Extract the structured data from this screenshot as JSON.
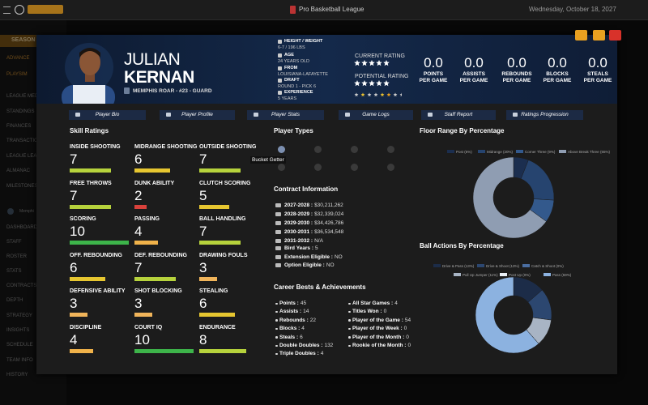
{
  "top_bar": {
    "title": "Pro Basketball League",
    "date": "Wednesday, October 18, 2027"
  },
  "sidebar": {
    "header": "SEASON",
    "team_link": "Memphi",
    "items": [
      "ADVANCE",
      "PLAYSIM",
      "LEAGUE MED",
      "STANDINGS",
      "FINANCES",
      "TRANSACTIO",
      "LEAGUE LEA",
      "ALMANAC",
      "MILESTONES",
      "DASHBOARD",
      "STAFF",
      "ROSTER",
      "STATS",
      "CONTRACTS",
      "DEPTH",
      "STRATEGY",
      "INSIGHTS",
      "SCHEDULE",
      "TEAM INFO",
      "HISTORY"
    ]
  },
  "player": {
    "first_name": "JULIAN",
    "last_name": "KERNAN",
    "team_line": "MEMPHIS ROAR - #23 - GUARD",
    "info": [
      {
        "label": "HEIGHT / WEIGHT",
        "value": "6-7 / 196 LBS"
      },
      {
        "label": "AGE",
        "value": "24 YEARS OLD"
      },
      {
        "label": "FROM",
        "value": "LOUISIANA-LAFAYETTE"
      },
      {
        "label": "DRAFT",
        "value": "ROUND 1 - PICK 6"
      },
      {
        "label": "EXPERIENCE",
        "value": "5 YEARS"
      }
    ],
    "current_rating_label": "CURRENT RATING",
    "potential_rating_label": "POTENTIAL RATING",
    "stats": [
      {
        "value": "0.0",
        "label": [
          "POINTS",
          "PER GAME"
        ]
      },
      {
        "value": "0.0",
        "label": [
          "ASSISTS",
          "PER GAME"
        ]
      },
      {
        "value": "0.0",
        "label": [
          "REBOUNDS",
          "PER GAME"
        ]
      },
      {
        "value": "0.0",
        "label": [
          "BLOCKS",
          "PER GAME"
        ]
      },
      {
        "value": "0.0",
        "label": [
          "STEALS",
          "PER GAME"
        ]
      }
    ]
  },
  "tabs": [
    "Player Bio",
    "Player Profile",
    "Player Stats",
    "Game Logs",
    "Staff Report",
    "Ratings Progression"
  ],
  "skill_ratings": {
    "title": "Skill Ratings",
    "items": [
      {
        "name": "INSIDE SHOOTING",
        "value": 7,
        "color": "#b6d23c"
      },
      {
        "name": "MIDRANGE SHOOTING",
        "value": 6,
        "color": "#e6c630"
      },
      {
        "name": "OUTSIDE SHOOTING",
        "value": 7,
        "color": "#b6d23c"
      },
      {
        "name": "FREE THROWS",
        "value": 7,
        "color": "#b6d23c"
      },
      {
        "name": "DUNK ABILITY",
        "value": 2,
        "color": "#d9413b"
      },
      {
        "name": "CLUTCH SCORING",
        "value": 5,
        "color": "#e6c630"
      },
      {
        "name": "SCORING",
        "value": 10,
        "color": "#3db44a"
      },
      {
        "name": "PASSING",
        "value": 4,
        "color": "#f0b24a"
      },
      {
        "name": "BALL HANDLING",
        "value": 7,
        "color": "#b6d23c"
      },
      {
        "name": "OFF. REBOUNDING",
        "value": 6,
        "color": "#e6c630"
      },
      {
        "name": "DEF. REBOUNDING",
        "value": 7,
        "color": "#b6d23c"
      },
      {
        "name": "DRAWING FOULS",
        "value": 3,
        "color": "#f0b45a"
      },
      {
        "name": "DEFENSIVE ABILITY",
        "value": 3,
        "color": "#f0b45a"
      },
      {
        "name": "SHOT BLOCKING",
        "value": 3,
        "color": "#f0b45a"
      },
      {
        "name": "STEALING",
        "value": 6,
        "color": "#e6c630"
      },
      {
        "name": "DISCIPLINE",
        "value": 4,
        "color": "#f0b24a"
      },
      {
        "name": "COURT IQ",
        "value": 10,
        "color": "#3db44a"
      },
      {
        "name": "ENDURANCE",
        "value": 8,
        "color": "#b6d23c"
      }
    ]
  },
  "player_types": {
    "title": "Player Types",
    "tooltip": "Bucket Getter"
  },
  "contract": {
    "title": "Contract Information",
    "years": [
      {
        "label": "2027-2028 :",
        "value": "$30,211,262"
      },
      {
        "label": "2028-2029 :",
        "value": "$32,339,024"
      },
      {
        "label": "2029-2030 :",
        "value": "$34,426,786"
      },
      {
        "label": "2030-2031 :",
        "value": "$36,534,548"
      },
      {
        "label": "2031-2032 :",
        "value": "N/A"
      }
    ],
    "other": [
      {
        "label": "Bird Years :",
        "value": 5
      },
      {
        "label": "Extension Eligible :",
        "value": "NO"
      },
      {
        "label": "Option Eligible :",
        "value": "NO"
      }
    ]
  },
  "career": {
    "title": "Career Bests & Achievements",
    "columns": [
      [
        {
          "label": "Points :",
          "value": 45
        },
        {
          "label": "Assists :",
          "value": 14
        },
        {
          "label": "Rebounds :",
          "value": 22
        },
        {
          "label": "Blocks :",
          "value": 4
        },
        {
          "label": "Steals :",
          "value": 6
        },
        {
          "label": "Double Doubles :",
          "value": 132
        },
        {
          "label": "Triple Doubles :",
          "value": 4
        }
      ],
      [
        {
          "label": "All Star Games :",
          "value": 4
        },
        {
          "label": "Titles Won :",
          "value": 0
        },
        {
          "label": "Player of the Game :",
          "value": 54
        },
        {
          "label": "Player of the Week :",
          "value": 0
        },
        {
          "label": "Player of the Month :",
          "value": 0
        },
        {
          "label": "Rookie of the Month :",
          "value": 0
        }
      ]
    ]
  },
  "chart_data": [
    {
      "type": "pie",
      "donut": true,
      "title": "Floor Range By Percentage",
      "categories": [
        "Post (6%)",
        "Midrange (20%)",
        "Corner Three (9%)",
        "Above Break Three (65%)"
      ],
      "values": [
        6,
        20,
        9,
        65
      ],
      "colors": [
        "#1b2e4f",
        "#26446f",
        "#33598c",
        "#8f9db2"
      ]
    },
    {
      "type": "pie",
      "donut": true,
      "title": "Ball Actions By Percentage",
      "categories": [
        "Drive & Pass (13%)",
        "Drive & Shoot (13%)",
        "Catch & Shoot (0%)",
        "Pull Up Jumper (11%)",
        "Post Up (0%)",
        "Pass (59%)"
      ],
      "values": [
        13,
        13,
        0,
        11,
        0,
        59
      ],
      "colors": [
        "#1c2c48",
        "#2c4770",
        "#4a6da0",
        "#a8b4c4",
        "#e8eef5",
        "#8cb2e0"
      ]
    }
  ]
}
